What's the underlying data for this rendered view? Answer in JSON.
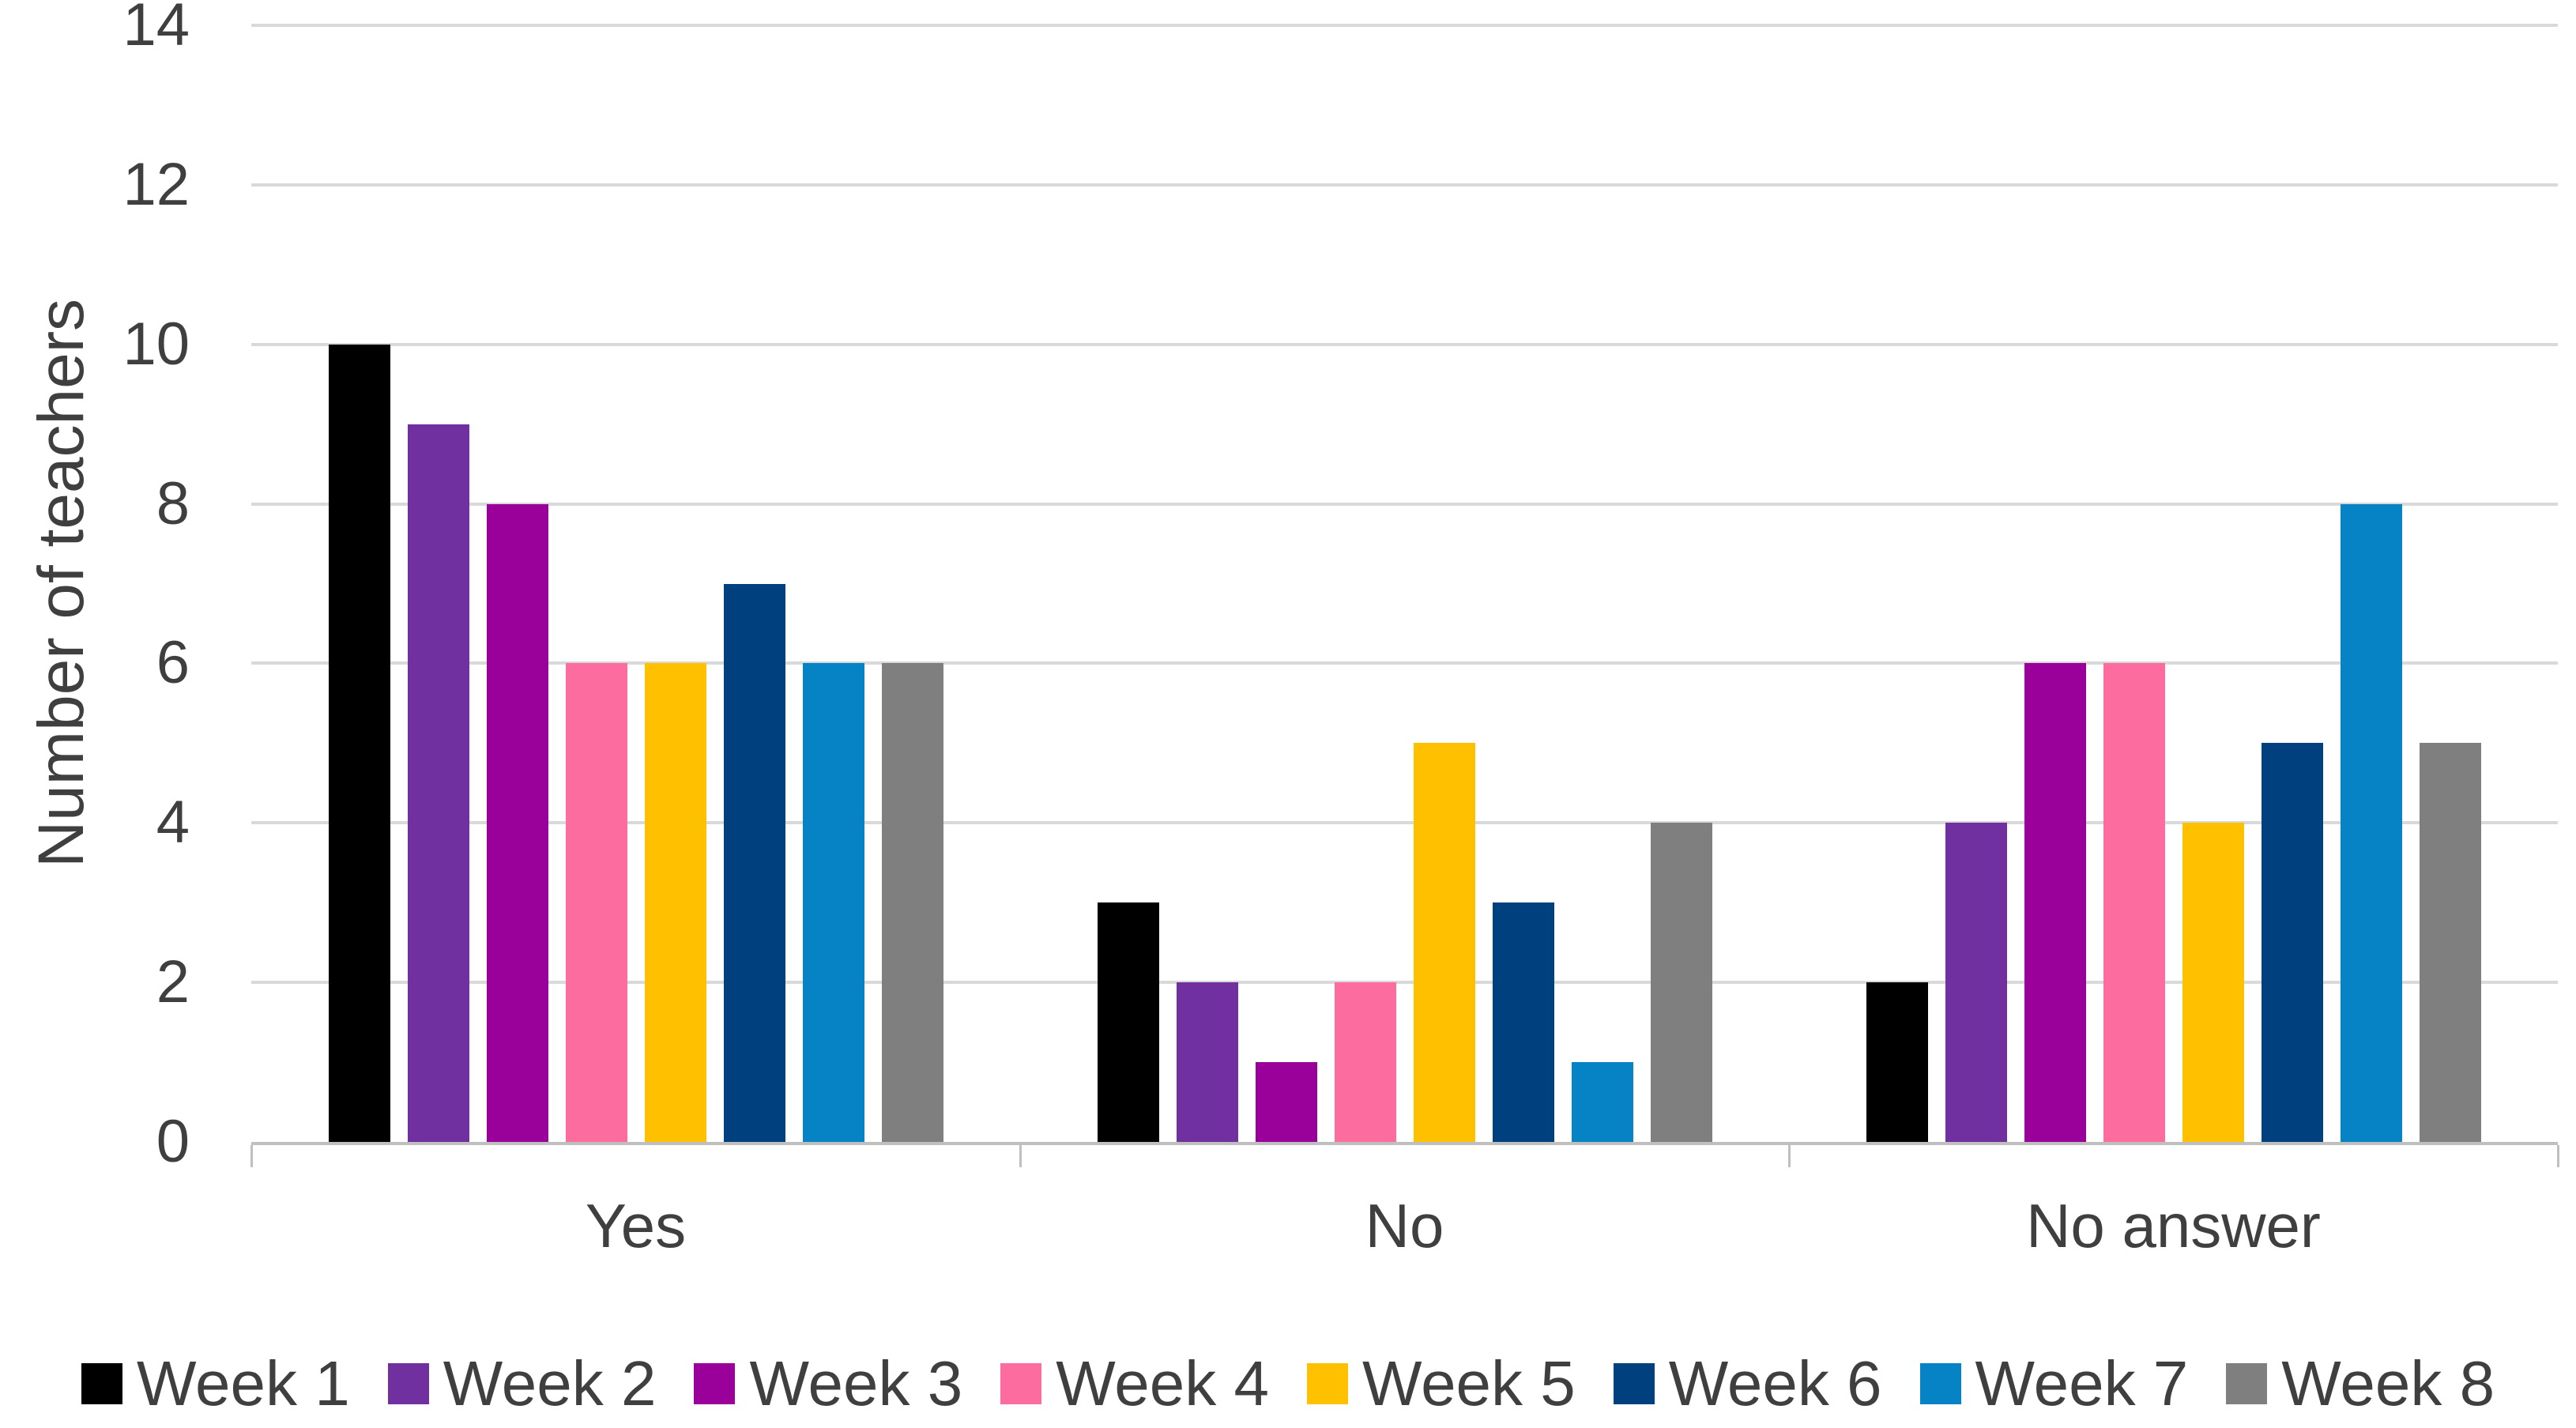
{
  "chart_data": {
    "type": "bar",
    "title": "",
    "xlabel": "",
    "ylabel": "Number of teachers",
    "ylim": [
      0,
      14
    ],
    "yticks": [
      0,
      2,
      4,
      6,
      8,
      10,
      12,
      14
    ],
    "grid": "horizontal",
    "legend_position": "bottom",
    "categories": [
      "Yes",
      "No",
      "No answer"
    ],
    "series": [
      {
        "name": "Week 1",
        "color": "#000000",
        "values": [
          10,
          3,
          2
        ]
      },
      {
        "name": "Week 2",
        "color": "#7030A0",
        "values": [
          9,
          2,
          4
        ]
      },
      {
        "name": "Week 3",
        "color": "#9A009A",
        "values": [
          8,
          1,
          6
        ]
      },
      {
        "name": "Week 4",
        "color": "#FC6C9E",
        "values": [
          6,
          2,
          6
        ]
      },
      {
        "name": "Week 5",
        "color": "#FFC000",
        "values": [
          6,
          5,
          4
        ]
      },
      {
        "name": "Week 6",
        "color": "#00407E",
        "values": [
          7,
          3,
          5
        ]
      },
      {
        "name": "Week 7",
        "color": "#0683C5",
        "values": [
          6,
          1,
          8
        ]
      },
      {
        "name": "Week 8",
        "color": "#7F7F7F",
        "values": [
          6,
          4,
          5
        ]
      }
    ]
  },
  "style": {
    "background": "#FFFFFF",
    "gridline_color": "#D9D9D9",
    "axis_color": "#BFBFBF",
    "text_color": "#3F3F3F"
  }
}
